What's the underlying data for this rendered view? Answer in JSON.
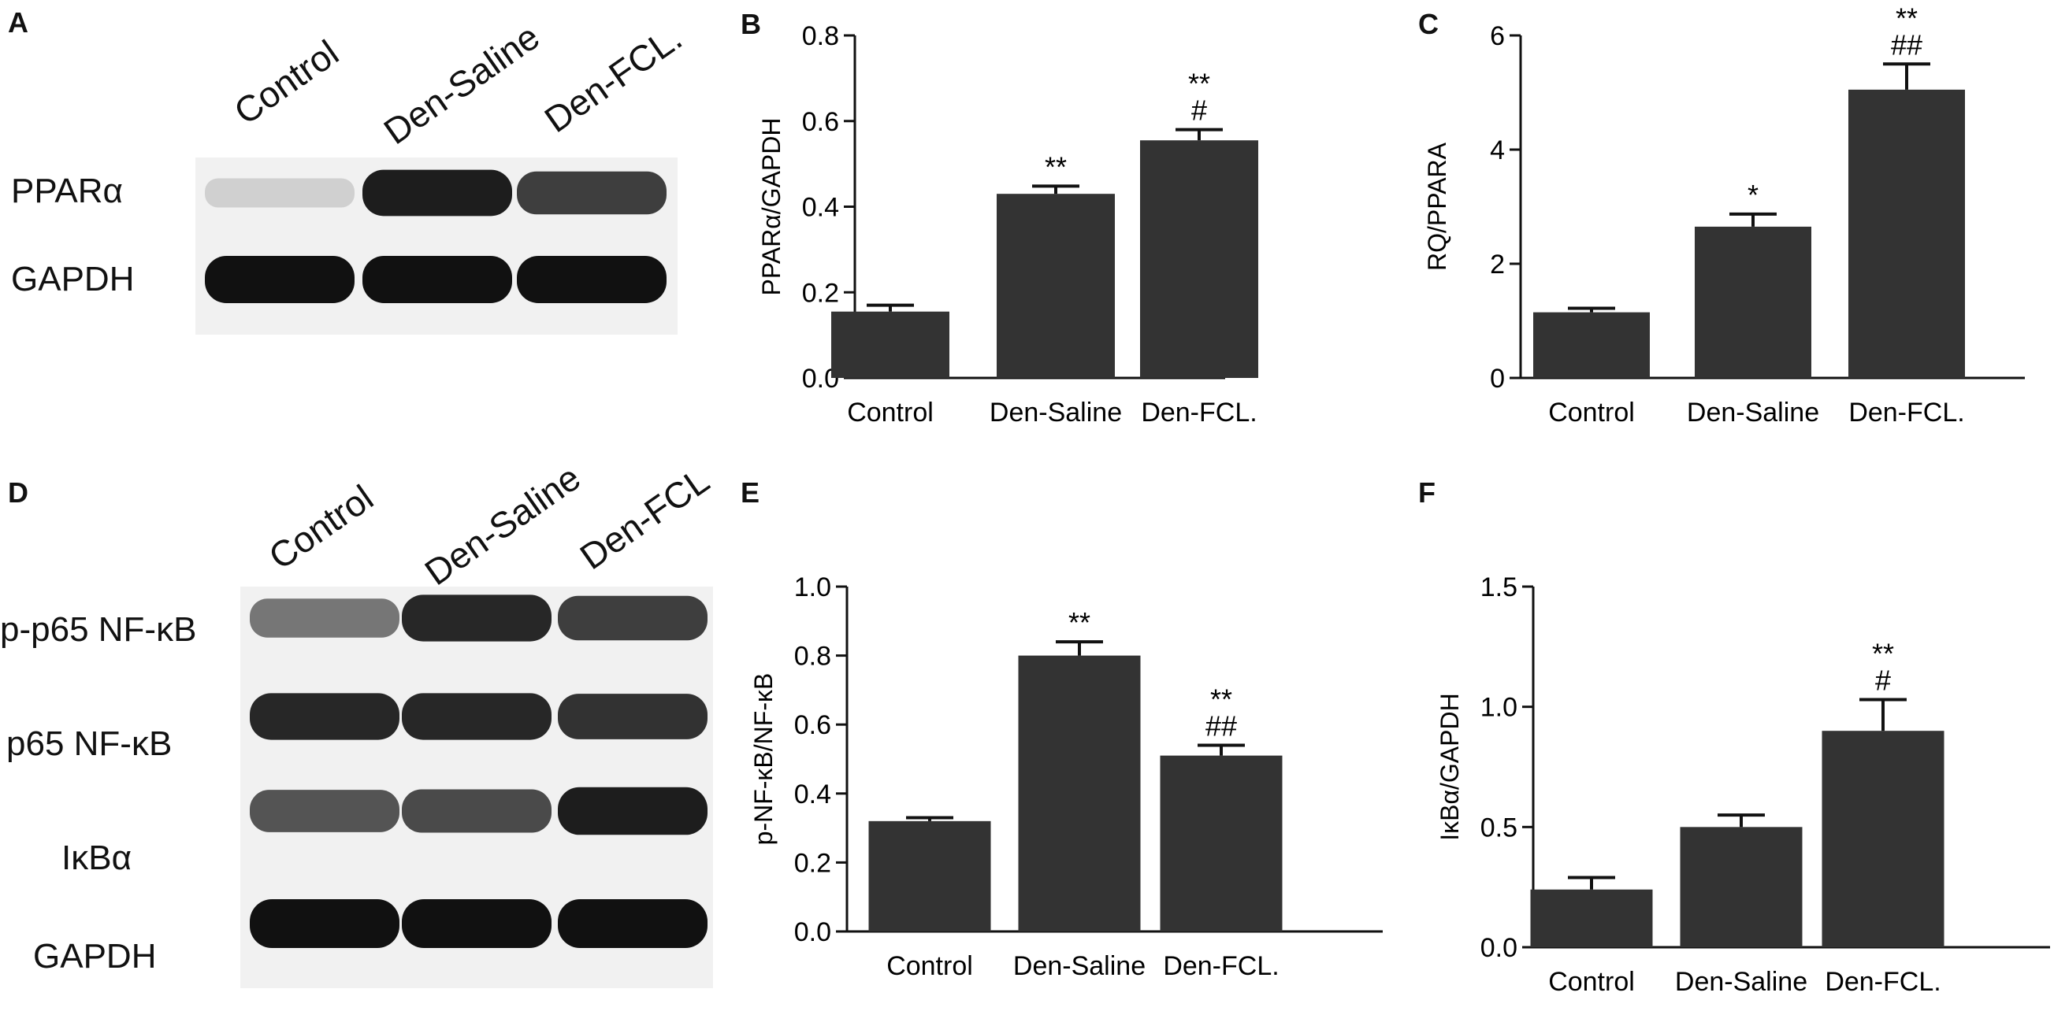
{
  "panel_letters": {
    "a": "A",
    "b": "B",
    "c": "C",
    "d": "D",
    "e": "E",
    "f": "F"
  },
  "blot_a": {
    "lanes": [
      "Control",
      "Den-Saline",
      "Den-FCL."
    ],
    "proteins": [
      "PPARα",
      "GAPDH"
    ],
    "band_intensity": [
      [
        0.15,
        0.95,
        0.8
      ],
      [
        1.0,
        1.0,
        1.0
      ]
    ]
  },
  "blot_d": {
    "lanes": [
      "Control",
      "Den-Saline",
      "Den-FCL"
    ],
    "proteins": [
      "p-p65 NF-κB",
      "p65 NF-κB",
      "IκBα",
      "GAPDH"
    ],
    "band_intensity": [
      [
        0.55,
        0.9,
        0.8
      ],
      [
        0.9,
        0.9,
        0.85
      ],
      [
        0.7,
        0.75,
        0.95
      ],
      [
        1.0,
        1.0,
        1.0
      ]
    ]
  },
  "chart_data": [
    {
      "id": "B",
      "type": "bar",
      "categories": [
        "Control",
        "Den-Saline",
        "Den-FCL."
      ],
      "values": [
        0.155,
        0.43,
        0.555
      ],
      "errors": [
        0.015,
        0.018,
        0.025
      ],
      "annotations": [
        [],
        [
          "**"
        ],
        [
          "**",
          "#"
        ]
      ],
      "ylabel": "PPARα/GAPDH",
      "xlabel": "",
      "ylim": [
        0,
        0.8
      ],
      "yticks": [
        "0.0",
        "0.2",
        "0.4",
        "0.6",
        "0.8"
      ],
      "ytick_values": [
        0,
        0.2,
        0.4,
        0.6,
        0.8
      ]
    },
    {
      "id": "C",
      "type": "bar",
      "categories": [
        "Control",
        "Den-Saline",
        "Den-FCL."
      ],
      "values": [
        1.15,
        2.65,
        5.05
      ],
      "errors": [
        0.07,
        0.22,
        0.45
      ],
      "annotations": [
        [],
        [
          "*"
        ],
        [
          "**",
          "##"
        ]
      ],
      "ylabel": "RQ/PPARA",
      "xlabel": "",
      "ylim": [
        0,
        6
      ],
      "yticks": [
        "0",
        "2",
        "4",
        "6"
      ],
      "ytick_values": [
        0,
        2,
        4,
        6
      ]
    },
    {
      "id": "E",
      "type": "bar",
      "categories": [
        "Control",
        "Den-Saline",
        "Den-FCL."
      ],
      "values": [
        0.32,
        0.8,
        0.51
      ],
      "errors": [
        0.01,
        0.04,
        0.03
      ],
      "annotations": [
        [],
        [
          "**"
        ],
        [
          "**",
          "##"
        ]
      ],
      "ylabel": "p-NF-κB/NF-κB",
      "xlabel": "",
      "ylim": [
        0,
        1.0
      ],
      "yticks": [
        "0.0",
        "0.2",
        "0.4",
        "0.6",
        "0.8",
        "1.0"
      ],
      "ytick_values": [
        0,
        0.2,
        0.4,
        0.6,
        0.8,
        1.0
      ]
    },
    {
      "id": "F",
      "type": "bar",
      "categories": [
        "Control",
        "Den-Saline",
        "Den-FCL."
      ],
      "values": [
        0.24,
        0.5,
        0.9
      ],
      "errors": [
        0.05,
        0.05,
        0.13
      ],
      "annotations": [
        [],
        [],
        [
          "**",
          "#"
        ]
      ],
      "ylabel": "IκBα/GAPDH",
      "xlabel": "",
      "ylim": [
        0,
        1.5
      ],
      "yticks": [
        "0.0",
        "0.5",
        "1.0",
        "1.5"
      ],
      "ytick_values": [
        0,
        0.5,
        1.0,
        1.5
      ]
    }
  ],
  "colors": {
    "bar": "#333333",
    "axis": "#111111",
    "band": "#111111",
    "blot_bg": "#f1f1f1"
  }
}
